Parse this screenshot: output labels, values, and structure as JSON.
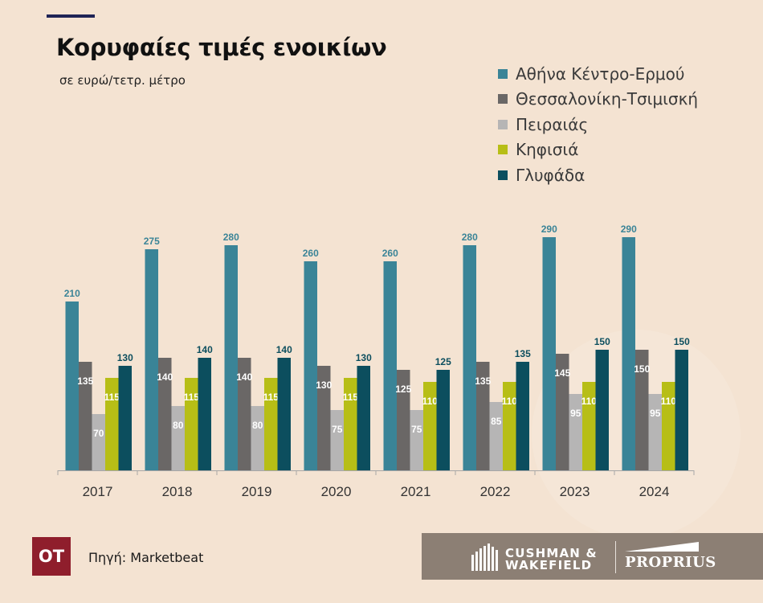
{
  "header": {
    "title": "Κορυφαίες τιμές ενοικίων",
    "subtitle": "σε ευρώ/τετρ. μέτρο"
  },
  "chart_data": {
    "type": "bar",
    "title": "Κορυφαίες τιμές ενοικίων",
    "subtitle": "σε ευρώ/τετρ. μέτρο",
    "xlabel": "",
    "ylabel": "",
    "ylim": [
      0,
      300
    ],
    "grid": false,
    "legend_position": "top-right",
    "categories": [
      "2017",
      "2018",
      "2019",
      "2020",
      "2021",
      "2022",
      "2023",
      "2024"
    ],
    "series": [
      {
        "name": "Αθήνα Κέντρο-Ερμού",
        "color": "#3a8497",
        "label_color": "#3a8497",
        "label_pos": "above",
        "values": [
          210,
          275,
          280,
          260,
          260,
          280,
          290,
          290
        ]
      },
      {
        "name": "Θεσσαλονίκη-Τσιμισκή",
        "color": "#6a6766",
        "label_color": "#ffffff",
        "label_pos": "inside",
        "values": [
          135,
          140,
          140,
          130,
          125,
          135,
          145,
          150
        ]
      },
      {
        "name": "Πειραιάς",
        "color": "#b6b5b5",
        "label_color": "#ffffff",
        "label_pos": "inside",
        "values": [
          70,
          80,
          80,
          75,
          75,
          85,
          95,
          95
        ]
      },
      {
        "name": "Κηφισιά",
        "color": "#b7be16",
        "label_color": "#ffffff",
        "label_pos": "inside",
        "values": [
          115,
          115,
          115,
          115,
          110,
          110,
          110,
          110
        ]
      },
      {
        "name": "Γλυφάδα",
        "color": "#0c4e5e",
        "label_color": "#0c4e5e",
        "label_pos": "above",
        "values": [
          130,
          140,
          140,
          130,
          125,
          135,
          150,
          150
        ]
      }
    ]
  },
  "footer": {
    "badge": "OT",
    "source": "Πηγή: Marketbeat",
    "brand_cw_line1": "CUSHMAN &",
    "brand_cw_line2": "WAKEFIELD",
    "brand_partner": "PROPRIUS"
  }
}
